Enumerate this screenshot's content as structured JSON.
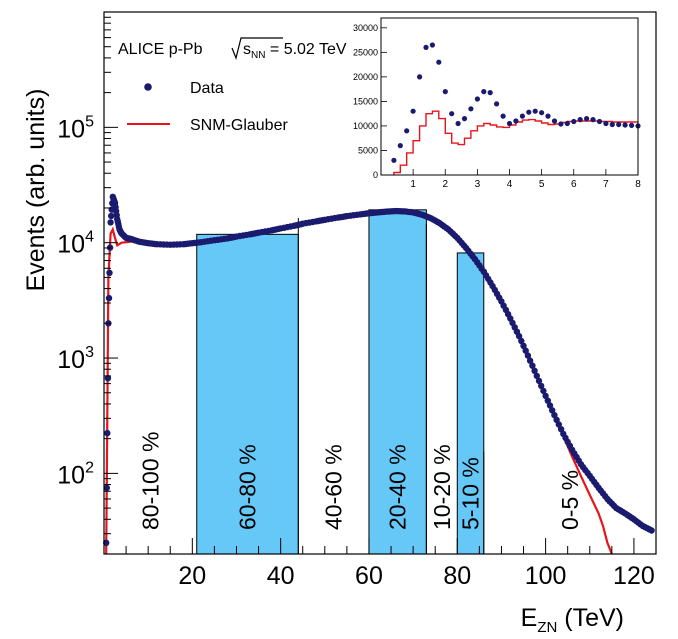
{
  "chart_data": [
    {
      "type": "scatter",
      "title": "",
      "annotation_top": "ALICE p-Pb",
      "energy_symbol": "s",
      "energy_sub": "NN",
      "energy_value": " = 5.02 TeV",
      "xlabel_main": "E",
      "xlabel_sub": "ZN",
      "xlabel_unit": " (TeV)",
      "ylabel": "Events (arb. units)",
      "xlim": [
        0,
        125
      ],
      "ylim": [
        20,
        1000000
      ],
      "yscale": "log",
      "xticks": [
        "20",
        "40",
        "60",
        "80",
        "100",
        "120"
      ],
      "yticks": [
        {
          "base": "10",
          "exp": "2",
          "value": 100
        },
        {
          "base": "10",
          "exp": "3",
          "value": 1000
        },
        {
          "base": "10",
          "exp": "4",
          "value": 10000
        },
        {
          "base": "10",
          "exp": "5",
          "value": 100000
        }
      ],
      "legend": [
        {
          "label": "Data",
          "color": "#1a1a6e",
          "marker": "circle"
        },
        {
          "label": "SNM-Glauber",
          "color": "#e8141c",
          "marker": "line"
        }
      ],
      "centrality_bins": [
        {
          "label": "80-100 %",
          "x_start": 0,
          "x_end": 21,
          "filled": false
        },
        {
          "label": "60-80 %",
          "x_start": 21,
          "x_end": 44,
          "filled": true
        },
        {
          "label": "40-60 %",
          "x_start": 44,
          "x_end": 60,
          "filled": false
        },
        {
          "label": "20-40 %",
          "x_start": 60,
          "x_end": 73,
          "filled": true
        },
        {
          "label": "10-20 %",
          "x_start": 73,
          "x_end": 80,
          "filled": false
        },
        {
          "label": "5-10 %",
          "x_start": 80,
          "x_end": 86,
          "filled": true
        },
        {
          "label": "0-5 %",
          "x_start": 86,
          "x_end": 125,
          "filled": false
        }
      ],
      "fill_color": "#66c8f7",
      "data_points": [
        [
          0.5,
          25
        ],
        [
          1,
          2000
        ],
        [
          1.5,
          15000
        ],
        [
          2,
          25000
        ],
        [
          2.5,
          22000
        ],
        [
          3,
          16000
        ],
        [
          3.5,
          13000
        ],
        [
          4,
          12000
        ],
        [
          5,
          11000
        ],
        [
          6,
          10800
        ],
        [
          8,
          10200
        ],
        [
          10,
          9900
        ],
        [
          12,
          9700
        ],
        [
          15,
          9600
        ],
        [
          18,
          9700
        ],
        [
          20,
          9900
        ],
        [
          22,
          10100
        ],
        [
          25,
          10500
        ],
        [
          28,
          10900
        ],
        [
          30,
          11300
        ],
        [
          33,
          11800
        ],
        [
          35,
          12200
        ],
        [
          38,
          12800
        ],
        [
          40,
          13300
        ],
        [
          43,
          14000
        ],
        [
          45,
          14600
        ],
        [
          48,
          15300
        ],
        [
          50,
          15800
        ],
        [
          53,
          16500
        ],
        [
          55,
          17000
        ],
        [
          58,
          17600
        ],
        [
          60,
          18000
        ],
        [
          62,
          18300
        ],
        [
          64,
          18600
        ],
        [
          66,
          18800
        ],
        [
          68,
          18700
        ],
        [
          70,
          18300
        ],
        [
          72,
          17500
        ],
        [
          74,
          16300
        ],
        [
          76,
          14800
        ],
        [
          78,
          13000
        ],
        [
          80,
          11000
        ],
        [
          82,
          9000
        ],
        [
          84,
          7200
        ],
        [
          86,
          5600
        ],
        [
          88,
          4200
        ],
        [
          90,
          3100
        ],
        [
          92,
          2200
        ],
        [
          94,
          1550
        ],
        [
          96,
          1050
        ],
        [
          98,
          700
        ],
        [
          100,
          470
        ],
        [
          102,
          320
        ],
        [
          104,
          220
        ],
        [
          106,
          160
        ],
        [
          108,
          120
        ],
        [
          110,
          95
        ],
        [
          112,
          75
        ],
        [
          114,
          60
        ],
        [
          116,
          50
        ],
        [
          118,
          45
        ],
        [
          120,
          40
        ],
        [
          122,
          35
        ],
        [
          124,
          32
        ]
      ],
      "model_points": [
        [
          0.5,
          20
        ],
        [
          1,
          5000
        ],
        [
          1.5,
          12000
        ],
        [
          2,
          13000
        ],
        [
          2.5,
          11000
        ],
        [
          3,
          9500
        ],
        [
          4,
          10000
        ],
        [
          6,
          10200
        ],
        [
          8,
          10300
        ],
        [
          10,
          10100
        ],
        [
          12,
          10000
        ],
        [
          15,
          9900
        ],
        [
          18,
          9900
        ],
        [
          20,
          10000
        ],
        [
          22,
          10200
        ],
        [
          25,
          10600
        ],
        [
          28,
          11000
        ],
        [
          30,
          11400
        ],
        [
          33,
          11900
        ],
        [
          35,
          12300
        ],
        [
          38,
          12900
        ],
        [
          40,
          13400
        ],
        [
          43,
          14100
        ],
        [
          45,
          14700
        ],
        [
          48,
          15400
        ],
        [
          50,
          15900
        ],
        [
          53,
          16600
        ],
        [
          55,
          17100
        ],
        [
          58,
          17800
        ],
        [
          60,
          18300
        ],
        [
          62,
          18700
        ],
        [
          64,
          19100
        ],
        [
          66,
          19300
        ],
        [
          68,
          19200
        ],
        [
          70,
          18800
        ],
        [
          72,
          18000
        ],
        [
          74,
          16700
        ],
        [
          76,
          15100
        ],
        [
          78,
          13200
        ],
        [
          80,
          11200
        ],
        [
          82,
          9100
        ],
        [
          84,
          7300
        ],
        [
          86,
          5700
        ],
        [
          88,
          4300
        ],
        [
          90,
          3200
        ],
        [
          92,
          2300
        ],
        [
          94,
          1600
        ],
        [
          96,
          1100
        ],
        [
          98,
          720
        ],
        [
          100,
          480
        ],
        [
          102,
          320
        ],
        [
          104,
          210
        ],
        [
          106,
          140
        ],
        [
          108,
          95
        ],
        [
          110,
          65
        ],
        [
          112,
          45
        ],
        [
          113,
          35
        ],
        [
          114,
          25
        ],
        [
          115,
          20
        ]
      ]
    },
    {
      "type": "scatter",
      "inset": true,
      "xlim": [
        0,
        8
      ],
      "ylim": [
        0,
        32000
      ],
      "xticks": [
        "1",
        "2",
        "3",
        "4",
        "5",
        "6",
        "7",
        "8"
      ],
      "yticks": [
        "0",
        "5000",
        "10000",
        "15000",
        "20000",
        "25000",
        "30000"
      ],
      "data_points": [
        [
          0.4,
          3000
        ],
        [
          0.6,
          6000
        ],
        [
          0.8,
          9000
        ],
        [
          1.0,
          13000
        ],
        [
          1.2,
          20000
        ],
        [
          1.4,
          26000
        ],
        [
          1.6,
          26500
        ],
        [
          1.8,
          23000
        ],
        [
          2.0,
          17000
        ],
        [
          2.2,
          12500
        ],
        [
          2.4,
          10500
        ],
        [
          2.6,
          11500
        ],
        [
          2.8,
          13500
        ],
        [
          3.0,
          15500
        ],
        [
          3.2,
          17000
        ],
        [
          3.4,
          16800
        ],
        [
          3.6,
          14500
        ],
        [
          3.8,
          12000
        ],
        [
          4.0,
          10500
        ],
        [
          4.2,
          11000
        ],
        [
          4.4,
          12000
        ],
        [
          4.6,
          12800
        ],
        [
          4.8,
          13000
        ],
        [
          5.0,
          12700
        ],
        [
          5.2,
          12000
        ],
        [
          5.4,
          11000
        ],
        [
          5.6,
          10400
        ],
        [
          5.8,
          10500
        ],
        [
          6.0,
          10900
        ],
        [
          6.2,
          11300
        ],
        [
          6.4,
          11500
        ],
        [
          6.6,
          11300
        ],
        [
          6.8,
          10900
        ],
        [
          7.0,
          10500
        ],
        [
          7.2,
          10300
        ],
        [
          7.4,
          10300
        ],
        [
          7.6,
          10200
        ],
        [
          7.8,
          10100
        ],
        [
          8.0,
          10000
        ]
      ],
      "model_points": [
        [
          0.4,
          500
        ],
        [
          0.6,
          2000
        ],
        [
          0.8,
          4500
        ],
        [
          1.0,
          7000
        ],
        [
          1.2,
          10000
        ],
        [
          1.4,
          12500
        ],
        [
          1.6,
          13000
        ],
        [
          1.8,
          11500
        ],
        [
          2.0,
          8500
        ],
        [
          2.2,
          6500
        ],
        [
          2.4,
          6200
        ],
        [
          2.6,
          7500
        ],
        [
          2.8,
          9000
        ],
        [
          3.0,
          10000
        ],
        [
          3.2,
          10500
        ],
        [
          3.4,
          10200
        ],
        [
          3.6,
          9800
        ],
        [
          3.8,
          9700
        ],
        [
          4.0,
          10200
        ],
        [
          4.2,
          10800
        ],
        [
          4.4,
          11200
        ],
        [
          4.6,
          11300
        ],
        [
          4.8,
          11000
        ],
        [
          5.0,
          10600
        ],
        [
          5.2,
          10300
        ],
        [
          5.4,
          10400
        ],
        [
          5.6,
          10700
        ],
        [
          5.8,
          10900
        ],
        [
          6.0,
          11000
        ],
        [
          6.4,
          11000
        ],
        [
          6.8,
          10900
        ],
        [
          7.2,
          10800
        ],
        [
          7.6,
          10800
        ],
        [
          8.0,
          10800
        ]
      ]
    }
  ]
}
